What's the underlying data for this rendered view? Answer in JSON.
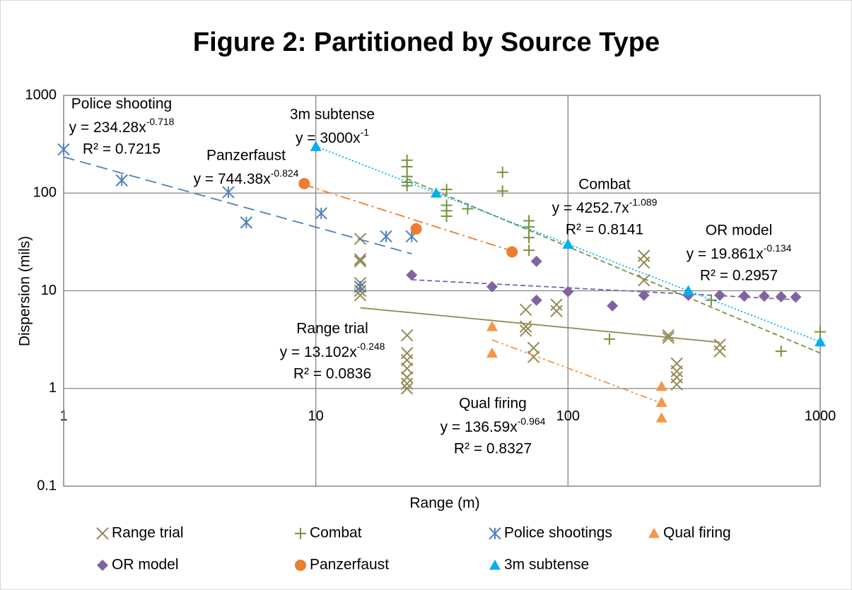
{
  "chart_data": {
    "type": "scatter",
    "title": "Figure 2: Partitioned by Source Type",
    "x_label": "Range (m)",
    "y_label": "Dispersion (mils)",
    "log_x": true,
    "log_y": true,
    "grid": true,
    "xlim": [
      1,
      1000
    ],
    "xticks": [
      1,
      10,
      100,
      1000
    ],
    "ylim": [
      0.1,
      1000
    ],
    "yticks": [
      0.1,
      1,
      10,
      100,
      1000
    ],
    "x_axis_crosses_at": 1,
    "legend_position": "bottom",
    "series": [
      {
        "name": "Range trial",
        "color": "#948A54",
        "marker": "x",
        "x": [
          15,
          15,
          15,
          15,
          15,
          15,
          15,
          23,
          23,
          23,
          23,
          23,
          23,
          23,
          68,
          68,
          68,
          73,
          73,
          90,
          90,
          200,
          200,
          200,
          250,
          250,
          270,
          270,
          270,
          270,
          400,
          400
        ],
        "values": [
          34,
          21,
          20,
          12,
          11,
          10,
          9,
          3.5,
          2.3,
          1.95,
          1.6,
          1.3,
          1.12,
          1.0,
          6.4,
          4.3,
          3.9,
          2.6,
          2.1,
          7.2,
          6.2,
          22.8,
          19.4,
          12.8,
          3.5,
          3.3,
          1.8,
          1.5,
          1.3,
          1.1,
          2.8,
          2.4
        ],
        "trendline": {
          "label": "Range trial",
          "coefficient": 13.102,
          "exponent": -0.248,
          "equation": "y = 13.102x",
          "r2_label": "R² = 0.0836",
          "line_style": "solid"
        }
      },
      {
        "name": "Combat",
        "color": "#77933C",
        "marker": "plus",
        "x": [
          23,
          23,
          23,
          23,
          23,
          33,
          33,
          33,
          33,
          40,
          55,
          55,
          70,
          70,
          70,
          70,
          146,
          370,
          700,
          1000
        ],
        "values": [
          217,
          186,
          148,
          129,
          119,
          109,
          75,
          66,
          58,
          69,
          163,
          105,
          52,
          45,
          35,
          26,
          3.2,
          8,
          2.4,
          3.8
        ],
        "trendline": {
          "label": "Combat",
          "coefficient": 4252.7,
          "exponent": -1.089,
          "equation": "y = 4252.7x",
          "r2_label": "R² = 0.8141",
          "line_style": "short-dash"
        }
      },
      {
        "name": "Police shootings",
        "color": "#4F81BD",
        "marker": "asterisk",
        "x": [
          1,
          1.7,
          4.5,
          5.3,
          10.5,
          15,
          19,
          24
        ],
        "values": [
          280,
          135,
          102,
          50,
          62,
          11,
          36,
          36
        ],
        "trendline": {
          "label": "Police shooting",
          "coefficient": 234.28,
          "exponent": -0.718,
          "equation": "y = 234.28x",
          "r2_label": "R² = 0.7215",
          "line_style": "dash"
        }
      },
      {
        "name": "Qual firing",
        "color": "#F79646",
        "marker": "triangle",
        "x": [
          50,
          50,
          235,
          235,
          235
        ],
        "values": [
          4.3,
          2.3,
          1.05,
          0.72,
          0.5
        ],
        "trendline": {
          "label": "Qual firing",
          "coefficient": 136.59,
          "exponent": -0.964,
          "equation": "y = 136.59x",
          "r2_label": "R² = 0.8327",
          "line_style": "dash-dot-dot"
        }
      },
      {
        "name": "OR model",
        "color": "#8064A2",
        "marker": "diamond",
        "x": [
          24,
          50,
          75,
          75,
          100,
          150,
          200,
          300,
          400,
          500,
          600,
          700,
          800
        ],
        "values": [
          14.5,
          11,
          8,
          20,
          9.8,
          7,
          9,
          9,
          9,
          8.8,
          8.8,
          8.7,
          8.6
        ],
        "trendline": {
          "label": "OR model",
          "coefficient": 19.861,
          "exponent": -0.134,
          "equation": "y = 19.861x",
          "r2_label": "R² = 0.2957",
          "line_style": "short-dash"
        }
      },
      {
        "name": "Panzerfaust",
        "color": "#ED7D31",
        "marker": "circle",
        "x": [
          9,
          25,
          60
        ],
        "values": [
          125,
          43,
          25
        ],
        "trendline": {
          "label": "Panzerfaust",
          "coefficient": 744.38,
          "exponent": -0.824,
          "equation": "y = 744.38x",
          "line_style": "dash-dot"
        }
      },
      {
        "name": "3m subtense",
        "color": "#00B0F0",
        "marker": "triangle",
        "x": [
          10,
          30,
          100,
          300,
          1000
        ],
        "values": [
          300,
          100,
          30,
          10,
          3
        ],
        "trendline": {
          "label": "3m subtense",
          "coefficient": 3000,
          "exponent": -1,
          "equation": "y = 3000x",
          "line_style": "dot"
        }
      }
    ]
  }
}
